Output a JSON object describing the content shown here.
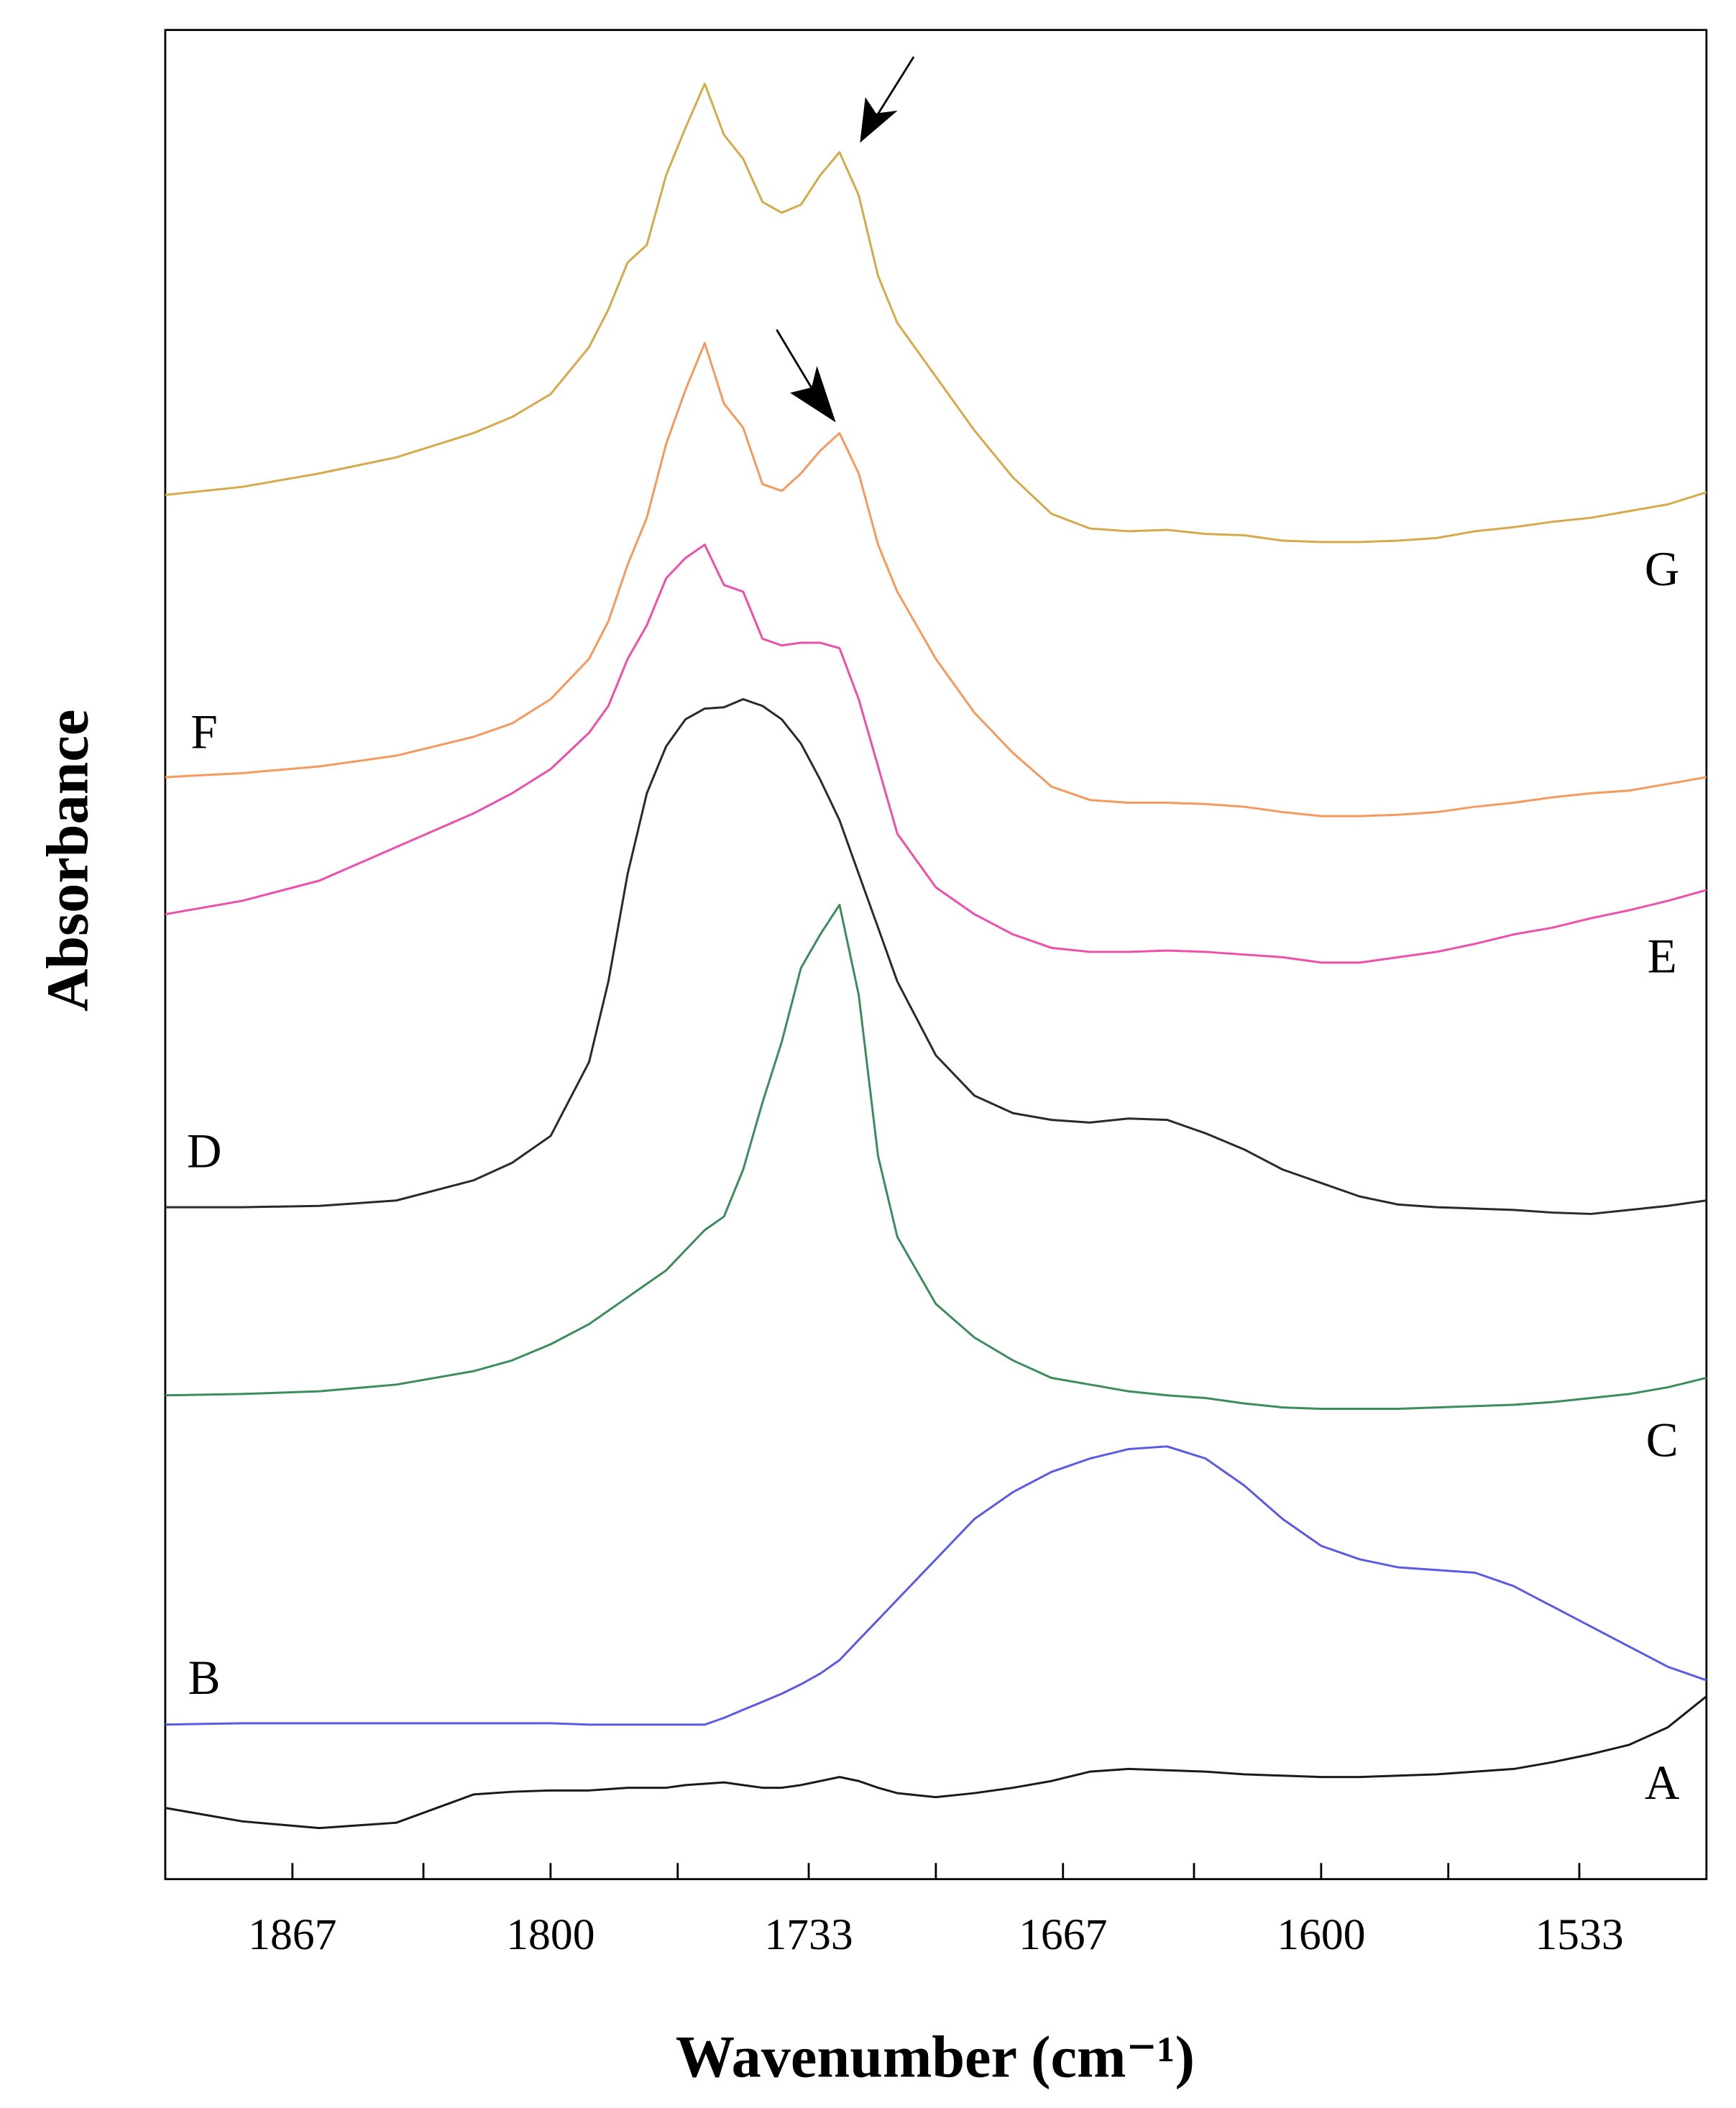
{
  "chart_data": {
    "type": "line",
    "x_label": "Wavenumber (cm⁻¹)",
    "y_label": "Absorbance",
    "xlim": [
      1900,
      1500
    ],
    "ylim": [
      0,
      1376
    ],
    "xticks": [
      1867,
      1800,
      1733,
      1667,
      1600,
      1533
    ],
    "xminor_ticks": [
      1833,
      1767,
      1700,
      1633,
      1567
    ],
    "x": [
      1900,
      1880,
      1860,
      1840,
      1820,
      1810,
      1800,
      1790,
      1785,
      1780,
      1775,
      1770,
      1765,
      1760,
      1755,
      1750,
      1745,
      1740,
      1735,
      1730,
      1725,
      1720,
      1715,
      1710,
      1700,
      1690,
      1680,
      1670,
      1660,
      1650,
      1640,
      1630,
      1620,
      1610,
      1600,
      1590,
      1580,
      1570,
      1560,
      1550,
      1540,
      1530,
      1520,
      1510,
      1500
    ],
    "series": [
      {
        "name": "A",
        "color": "#1a1a1a",
        "values": [
          53,
          43,
          38,
          42,
          63,
          65,
          66,
          66,
          67,
          68,
          68,
          68,
          70,
          71,
          72,
          70,
          68,
          68,
          70,
          73,
          76,
          73,
          68,
          64,
          61,
          64,
          68,
          73,
          80,
          82,
          81,
          80,
          78,
          77,
          76,
          76,
          77,
          78,
          80,
          82,
          87,
          93,
          100,
          113,
          136
        ]
      },
      {
        "name": "B",
        "color": "#5a5ae6",
        "values": [
          115,
          116,
          116,
          116,
          116,
          116,
          116,
          115,
          115,
          115,
          115,
          115,
          115,
          115,
          120,
          126,
          132,
          138,
          145,
          153,
          163,
          178,
          193,
          208,
          238,
          268,
          288,
          303,
          313,
          320,
          322,
          313,
          293,
          268,
          248,
          238,
          232,
          230,
          228,
          218,
          203,
          188,
          173,
          158,
          148
        ]
      },
      {
        "name": "C",
        "color": "#3c8c5c",
        "values": [
          360,
          361,
          363,
          368,
          378,
          386,
          398,
          413,
          423,
          433,
          443,
          453,
          468,
          483,
          493,
          528,
          578,
          623,
          678,
          703,
          725,
          658,
          538,
          478,
          428,
          403,
          386,
          373,
          368,
          363,
          360,
          358,
          354,
          351,
          350,
          350,
          350,
          351,
          352,
          353,
          355,
          358,
          361,
          366,
          373
        ]
      },
      {
        "name": "D",
        "color": "#2a2a2a",
        "values": [
          500,
          500,
          501,
          505,
          520,
          533,
          553,
          608,
          668,
          748,
          808,
          843,
          863,
          871,
          872,
          878,
          873,
          863,
          845,
          818,
          788,
          748,
          708,
          668,
          613,
          583,
          570,
          565,
          563,
          566,
          565,
          555,
          543,
          528,
          518,
          508,
          502,
          500,
          499,
          498,
          496,
          495,
          498,
          501,
          505
        ]
      },
      {
        "name": "E",
        "color": "#ee4fa8",
        "values": [
          718,
          728,
          743,
          768,
          793,
          808,
          826,
          853,
          873,
          908,
          933,
          968,
          983,
          993,
          963,
          958,
          923,
          918,
          920,
          920,
          916,
          878,
          828,
          778,
          738,
          718,
          703,
          693,
          690,
          690,
          691,
          690,
          688,
          686,
          682,
          682,
          686,
          690,
          696,
          703,
          708,
          715,
          721,
          728,
          736
        ]
      },
      {
        "name": "F",
        "color": "#f59a5e",
        "values": [
          820,
          823,
          828,
          836,
          850,
          860,
          878,
          908,
          936,
          978,
          1013,
          1068,
          1108,
          1143,
          1098,
          1080,
          1038,
          1033,
          1046,
          1063,
          1076,
          1046,
          993,
          958,
          908,
          868,
          838,
          813,
          803,
          801,
          801,
          800,
          798,
          794,
          791,
          791,
          792,
          794,
          798,
          801,
          805,
          808,
          810,
          815,
          820
        ]
      },
      {
        "name": "G",
        "color": "#d4aa4a",
        "values": [
          1030,
          1036,
          1046,
          1058,
          1076,
          1088,
          1105,
          1140,
          1168,
          1203,
          1216,
          1268,
          1303,
          1336,
          1298,
          1280,
          1248,
          1240,
          1246,
          1268,
          1285,
          1253,
          1193,
          1158,
          1118,
          1078,
          1043,
          1016,
          1005,
          1003,
          1004,
          1001,
          1000,
          996,
          995,
          995,
          996,
          998,
          1003,
          1006,
          1010,
          1013,
          1018,
          1023,
          1032
        ]
      }
    ]
  }
}
